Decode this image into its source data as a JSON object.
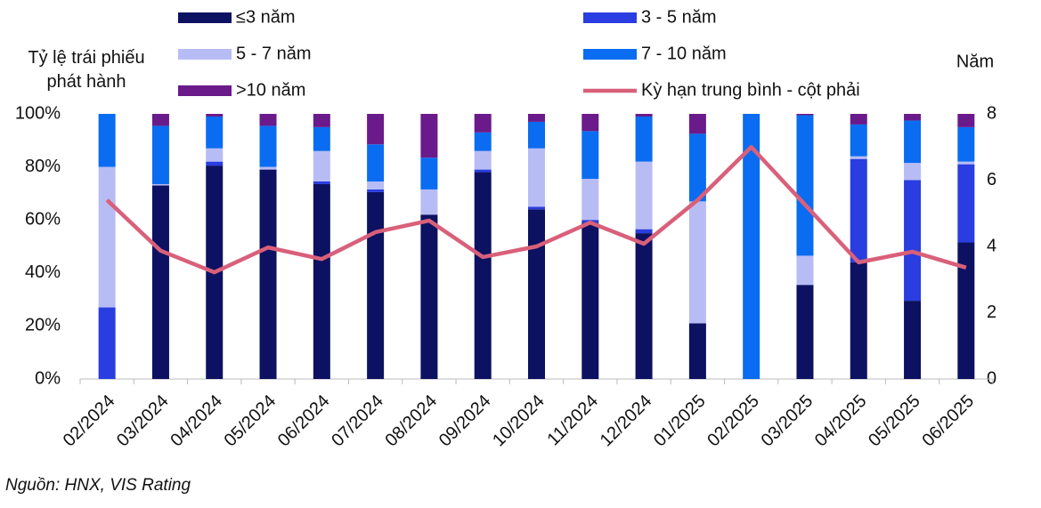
{
  "chart_data": {
    "type": "stacked_bar_line",
    "y_label": "Tỷ lệ trái phiếu phát hành",
    "y2_label": "Năm",
    "source": "Nguồn: HNX, VIS Rating",
    "categories": [
      "02/2024",
      "03/2024",
      "04/2024",
      "05/2024",
      "06/2024",
      "07/2024",
      "08/2024",
      "09/2024",
      "10/2024",
      "11/2024",
      "12/2024",
      "01/2025",
      "02/2025",
      "03/2025",
      "04/2025",
      "05/2025",
      "06/2025"
    ],
    "series": [
      {
        "name": "≤3 năm",
        "color": "#0d1161",
        "values": [
          0,
          73,
          80.5,
          79,
          73.5,
          70.5,
          62,
          78,
          64,
          59,
          55,
          21,
          0,
          35.5,
          44,
          29.5,
          51.5
        ]
      },
      {
        "name": "3 - 5 năm",
        "color": "#2a3de0",
        "values": [
          27,
          0,
          1.5,
          0,
          1,
          1,
          0,
          1,
          1,
          1,
          1.5,
          0,
          0,
          0,
          39,
          45.5,
          29.5
        ]
      },
      {
        "name": "5 - 7 năm",
        "color": "#b8bcf5",
        "values": [
          53,
          0.5,
          5,
          1,
          11.5,
          3,
          9.5,
          7,
          22,
          15.5,
          25.5,
          46,
          0,
          11,
          1,
          6.5,
          1
        ]
      },
      {
        "name": "7 - 10 năm",
        "color": "#0a6cf0",
        "values": [
          20,
          22,
          12,
          15.5,
          9,
          14,
          12,
          7,
          10,
          18,
          17,
          25.5,
          100,
          53,
          12,
          16,
          13
        ]
      },
      {
        "name": ">10 năm",
        "color": "#6a1a8a",
        "values": [
          0,
          4.5,
          1,
          4.5,
          5,
          11.5,
          16.5,
          7,
          3,
          6.5,
          1,
          7.5,
          0,
          0.5,
          4,
          2.5,
          5
        ]
      },
      {
        "name": "Kỳ hạn trung bình - cột phải",
        "color": "#d9607a",
        "type": "line",
        "axis": "y2",
        "values": [
          5.4,
          3.87,
          3.22,
          3.97,
          3.62,
          4.43,
          4.78,
          3.68,
          4.0,
          4.72,
          4.08,
          5.4,
          7.0,
          5.26,
          3.52,
          3.84,
          3.36
        ]
      }
    ],
    "ylim": [
      0,
      100
    ],
    "yticks": [
      {
        "value": 0,
        "label": "0%"
      },
      {
        "value": 20,
        "label": "20%"
      },
      {
        "value": 40,
        "label": "40%"
      },
      {
        "value": 60,
        "label": "60%"
      },
      {
        "value": 80,
        "label": "80%"
      },
      {
        "value": 100,
        "label": "100%"
      }
    ],
    "y2lim": [
      0,
      8
    ],
    "y2ticks": [
      0,
      2,
      4,
      6,
      8
    ]
  }
}
